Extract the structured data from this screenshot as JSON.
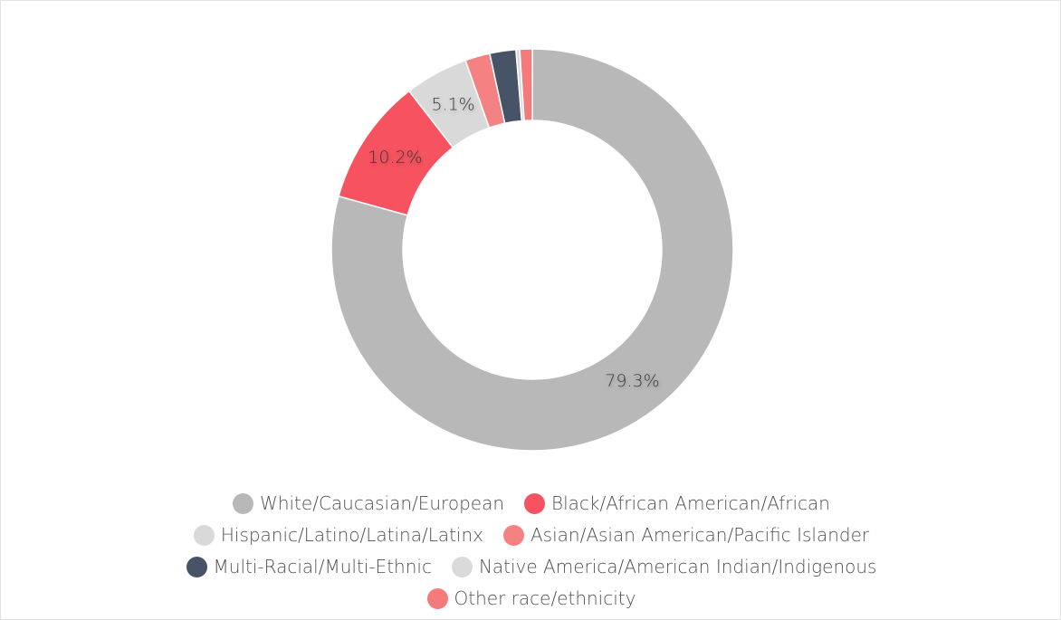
{
  "chart_data": {
    "type": "pie",
    "variant": "donut",
    "categories": [
      "White/Caucasian/European",
      "Black/African American/African",
      "Hispanic/Latino/Latina/Latinx",
      "Asian/Asian American/Pacific Islander",
      "Multi-Racial/Multi-Ethnic",
      "Native America/American Indian/Indigenous",
      "Other race/ethnicity"
    ],
    "values": [
      79.3,
      10.2,
      5.1,
      2.0,
      2.1,
      0.3,
      1.0
    ],
    "data_labels": [
      "79.3%",
      "10.2%",
      "5.1%",
      "",
      "",
      "",
      ""
    ],
    "colors": [
      "#b8b8b8",
      "#f7525f",
      "#d9d9d9",
      "#f58282",
      "#475366",
      "#dadada",
      "#f47b7b"
    ],
    "legend_position": "bottom",
    "start_angle_deg": 0,
    "direction": "clockwise"
  },
  "legend": {
    "rows": [
      [
        0,
        1
      ],
      [
        2,
        3
      ],
      [
        4,
        5
      ],
      [
        6
      ]
    ]
  }
}
